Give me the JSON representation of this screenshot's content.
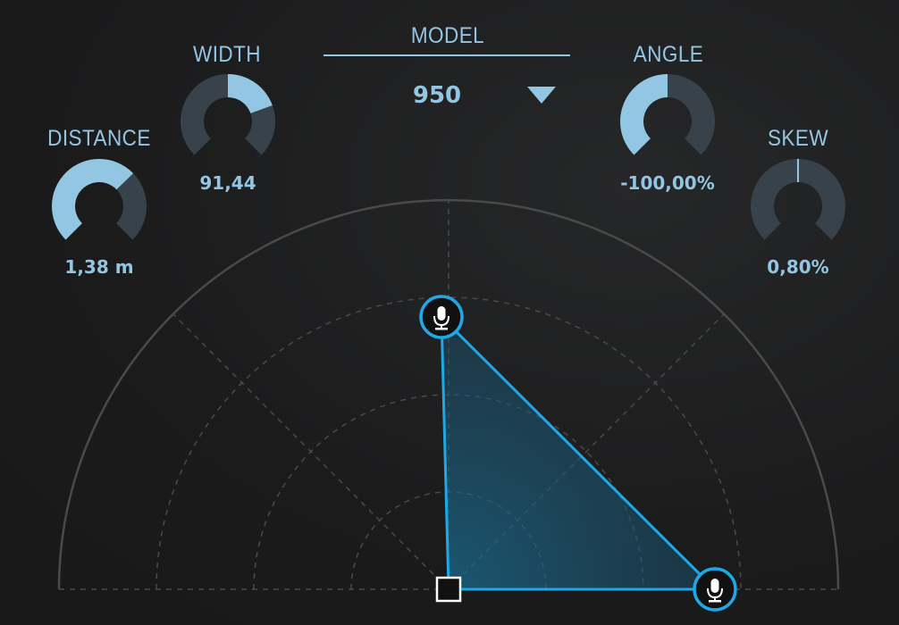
{
  "colors": {
    "accent": "#1fa8e8",
    "knob_fill": "#93c6e3",
    "knob_track": "#37424a",
    "text": "#93c6e3"
  },
  "model": {
    "label": "MODEL",
    "value": "950",
    "dropdown_icon": "triangle-down-icon"
  },
  "knobs": [
    {
      "id": "distance",
      "label": "DISTANCE",
      "value": "1,38 m",
      "fill_from": 0.0,
      "fill_to": 0.67
    },
    {
      "id": "width",
      "label": "WIDTH",
      "value": "91,44",
      "fill_from": 0.5,
      "fill_to": 0.76
    },
    {
      "id": "angle",
      "label": "ANGLE",
      "value": "-100,00%",
      "fill_from": 0.0,
      "fill_to": 0.5
    },
    {
      "id": "skew",
      "label": "SKEW",
      "value": "0,80%",
      "fill_from": 0.5,
      "fill_to": 0.504
    }
  ],
  "polar": {
    "rings": 4,
    "microphones": [
      {
        "icon": "microphone-icon"
      },
      {
        "icon": "microphone-icon"
      }
    ],
    "source_icon": "square-handle-icon"
  }
}
